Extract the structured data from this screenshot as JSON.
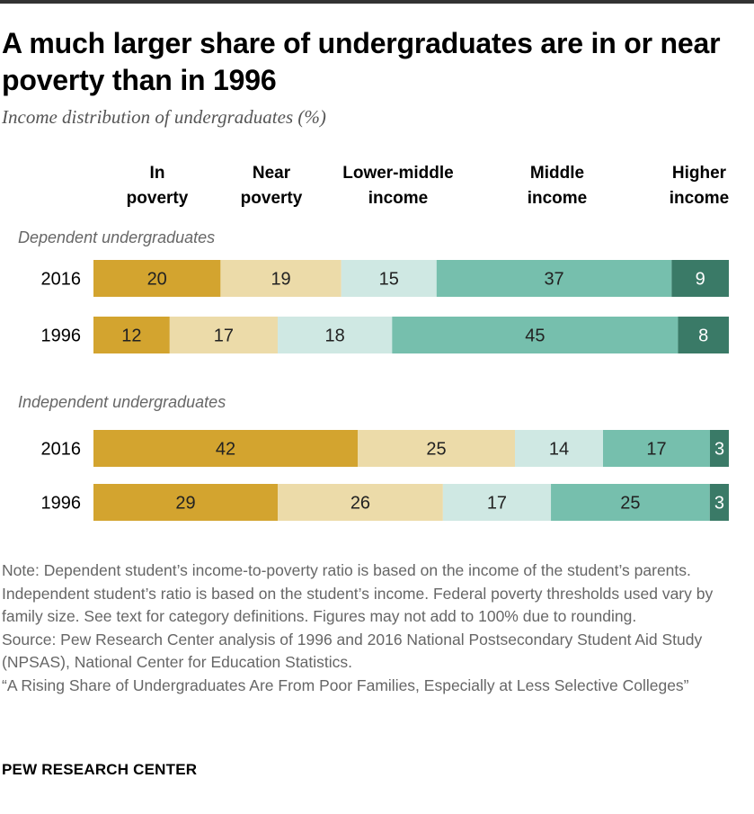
{
  "title": "A much larger share of undergraduates are in or near poverty than in 1996",
  "subtitle": "Income distribution of undergraduates (%)",
  "colors": {
    "in_poverty": "#d3a42f",
    "near_poverty": "#ecdba9",
    "lower_middle": "#cfe8e3",
    "middle": "#76bfad",
    "higher": "#3a7a67"
  },
  "chart_data": {
    "type": "bar",
    "orientation": "horizontal",
    "stacked": true,
    "categories": [
      "In poverty",
      "Near poverty",
      "Lower-middle income",
      "Middle income",
      "Higher income"
    ],
    "category_header_lines": [
      [
        "In",
        "poverty"
      ],
      [
        "Near",
        "poverty"
      ],
      [
        "Lower-middle",
        "income"
      ],
      [
        "Middle",
        "income"
      ],
      [
        "Higher",
        "income"
      ]
    ],
    "groups": [
      {
        "label": "Dependent undergraduates",
        "rows": [
          {
            "year": "2016",
            "values": [
              20,
              19,
              15,
              37,
              9
            ]
          },
          {
            "year": "1996",
            "values": [
              12,
              17,
              18,
              45,
              8
            ]
          }
        ]
      },
      {
        "label": "Independent undergraduates",
        "rows": [
          {
            "year": "2016",
            "values": [
              42,
              25,
              14,
              17,
              3
            ]
          },
          {
            "year": "1996",
            "values": [
              29,
              26,
              17,
              25,
              3
            ]
          }
        ]
      }
    ],
    "xlim": [
      0,
      100
    ],
    "grid": false,
    "legend": "column headers above bars"
  },
  "notes": {
    "note": "Note: Dependent student’s income-to-poverty ratio is based on the income of the student’s parents. Independent student’s ratio is based on the student’s income. Federal poverty thresholds used vary by family size. See text for category definitions. Figures may not add to 100% due to rounding.",
    "source": "Source: Pew Research Center analysis of 1996 and 2016 National Postsecondary Student Aid Study (NPSAS), National Center for Education Statistics.",
    "report": "“A Rising Share of Undergraduates Are From Poor Families, Especially at Less Selective Colleges”"
  },
  "brand": "PEW RESEARCH CENTER"
}
